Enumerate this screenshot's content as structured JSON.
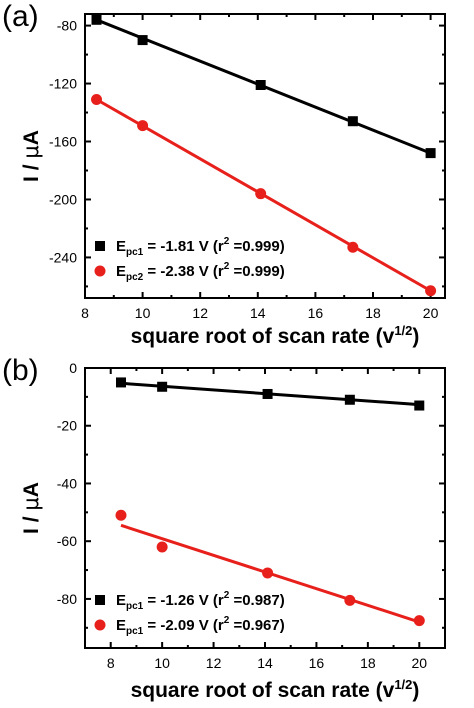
{
  "chart_data": [
    {
      "type": "scatter",
      "panel_label": "(a)",
      "xlabel": "square root of scan rate",
      "xlabel_unit": "v",
      "xlabel_unit_exp": "1/2",
      "ylabel_main": "I / ",
      "ylabel_mu": "μ",
      "ylabel_unit": "A",
      "xlim": [
        8,
        20.5
      ],
      "ylim": [
        -268,
        -72
      ],
      "xticks": [
        8,
        10,
        12,
        14,
        16,
        18,
        20
      ],
      "yticks": [
        -80,
        -120,
        -160,
        -200,
        -240
      ],
      "grid": false,
      "legend_position": "bottom-left",
      "series": [
        {
          "marker": "square",
          "color": "#000000",
          "x": [
            8.4,
            10,
            14.1,
            17.3,
            20
          ],
          "y": [
            -76,
            -90,
            -121,
            -146,
            -168
          ],
          "fit": [
            [
              8.4,
              -76
            ],
            [
              20,
              -168
            ]
          ],
          "legend": {
            "symbol": "E",
            "sub": "pc1",
            "value": " = -1.81 V (r",
            "sup": "2",
            "tail": " =0.999)"
          }
        },
        {
          "marker": "circle",
          "color": "#e8201c",
          "x": [
            8.4,
            10,
            14.1,
            17.3,
            20
          ],
          "y": [
            -131,
            -149,
            -196,
            -233,
            -263
          ],
          "fit": [
            [
              8.4,
              -131
            ],
            [
              20,
              -263
            ]
          ],
          "legend": {
            "symbol": "E",
            "sub": "pc2",
            "value": " = -2.38 V (r",
            "sup": "2",
            "tail": " =0.999)"
          }
        }
      ]
    },
    {
      "type": "scatter",
      "panel_label": "(b)",
      "xlabel": "square root of scan rate",
      "xlabel_unit": "v",
      "xlabel_unit_exp": "1/2",
      "ylabel_main": "I / ",
      "ylabel_mu": "μ",
      "ylabel_unit": "A",
      "xlim": [
        7,
        21
      ],
      "ylim": [
        -97,
        0
      ],
      "xticks": [
        8,
        10,
        12,
        14,
        16,
        18,
        20
      ],
      "yticks": [
        0,
        -20,
        -40,
        -60,
        -80
      ],
      "grid": false,
      "legend_position": "bottom-left",
      "series": [
        {
          "marker": "square",
          "color": "#000000",
          "x": [
            8.4,
            10,
            14.1,
            17.3,
            20
          ],
          "y": [
            -5,
            -6.5,
            -9,
            -11,
            -13
          ],
          "fit": [
            [
              8.4,
              -5.3
            ],
            [
              20,
              -12.7
            ]
          ],
          "legend": {
            "symbol": "E",
            "sub": "pc1",
            "value": " = -1.26 V (r",
            "sup": "2",
            "tail": " =0.987)"
          }
        },
        {
          "marker": "circle",
          "color": "#e8201c",
          "x": [
            8.4,
            10,
            14.1,
            17.3,
            20
          ],
          "y": [
            -51,
            -62,
            -71,
            -80.5,
            -87.5
          ],
          "fit": [
            [
              8.4,
              -54.5
            ],
            [
              20,
              -88
            ]
          ],
          "legend": {
            "symbol": "E",
            "sub": "pc1",
            "value": " = -2.09 V (r",
            "sup": "2",
            "tail": " =0.967)"
          }
        }
      ]
    }
  ]
}
